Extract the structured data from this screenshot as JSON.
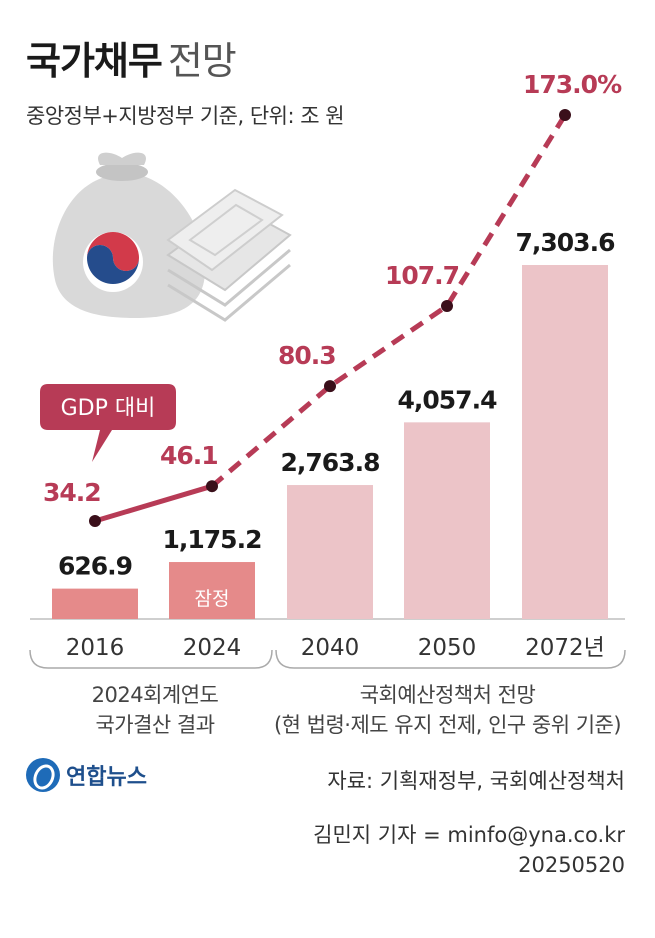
{
  "header": {
    "title_bold": "국가채무",
    "title_light": "전망",
    "subtitle": "중앙정부+지방정부 기준, 단위: 조 원"
  },
  "chart_data": {
    "type": "bar",
    "categories": [
      "2016",
      "2024",
      "2040",
      "2050",
      "2072년"
    ],
    "series": [
      {
        "values": [
          626.9,
          1175.2,
          2763.8,
          4057.4,
          7303.6
        ],
        "value_labels": [
          "626.9",
          "1,175.2",
          "2,763.8",
          "4,057.4",
          "7,303.6"
        ]
      },
      {
        "name": "GDP 대비",
        "type": "line",
        "values": [
          34.2,
          46.1,
          80.3,
          107.7,
          173.0
        ],
        "value_labels": [
          "34.2",
          "46.1",
          "80.3",
          "107.7",
          "173.0%"
        ]
      }
    ],
    "bar_note": {
      "category": "2024",
      "text": "잠정"
    },
    "colors": {
      "bar_actual": "#e58a8a",
      "bar_projection": "#ecc4c8",
      "line": "#b73b56",
      "dot": "#3a0f1a"
    }
  },
  "groups": {
    "actual": {
      "line1": "2024회계연도",
      "line2": "국가결산 결과"
    },
    "projection": {
      "line1": "국회예산정책처 전망",
      "line2": "(현 법령·제도 유지 전제, 인구 중위 기준)"
    }
  },
  "footer": {
    "logo_text": "연합뉴스",
    "source": "자료: 기획재정부, 국회예산정책처",
    "credit_line1": "김민지 기자 = minfo@yna.co.kr",
    "credit_line2": "20250520"
  }
}
